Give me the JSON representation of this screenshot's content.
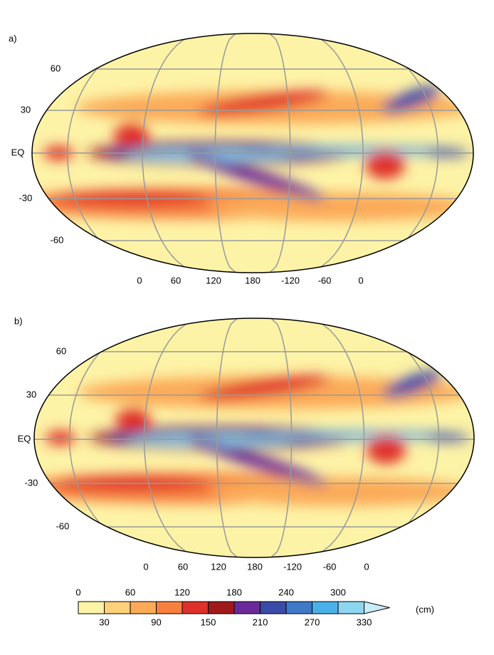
{
  "panels": [
    {
      "label": "a)",
      "lat_labels": [
        "60",
        "30",
        "EQ",
        "-30",
        "-60"
      ],
      "lon_labels": [
        "0",
        "60",
        "120",
        "180",
        "-120",
        "-60",
        "0"
      ]
    },
    {
      "label": "b)",
      "lat_labels": [
        "60",
        "30",
        "EQ",
        "-30",
        "-60"
      ],
      "lon_labels": [
        "0",
        "60",
        "120",
        "180",
        "-120",
        "-60",
        "0"
      ]
    }
  ],
  "colorbar": {
    "top_labels": [
      "0",
      "60",
      "120",
      "180",
      "240",
      "300"
    ],
    "bottom_labels": [
      "30",
      "90",
      "150",
      "210",
      "270",
      "330"
    ],
    "colors": [
      "#fdf3a6",
      "#fdd07a",
      "#fbaa58",
      "#f78040",
      "#e0302a",
      "#a01a1a",
      "#6a2a9a",
      "#3c4aa8",
      "#3f7ac8",
      "#4ab0e8",
      "#8ed6f0",
      "#c8ecf8"
    ],
    "unit": "(cm)"
  }
}
